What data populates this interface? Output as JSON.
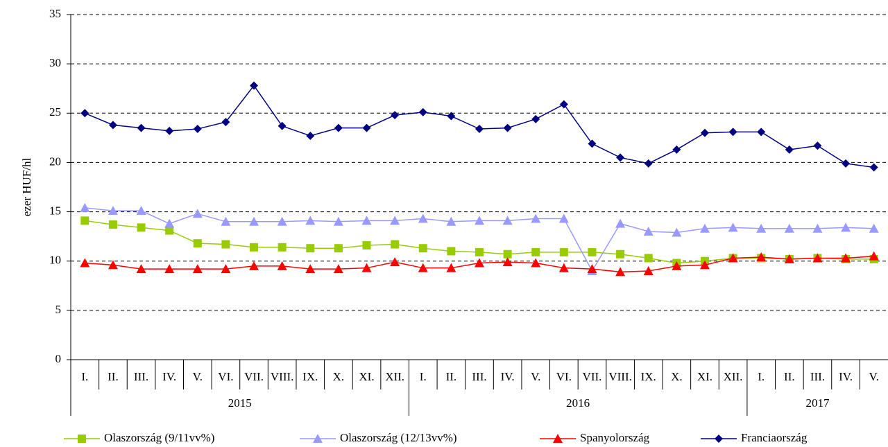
{
  "chart_data": {
    "type": "line",
    "y_label": "ezer HUF/hl",
    "categories": [
      "I.",
      "II.",
      "III.",
      "IV.",
      "V.",
      "VI.",
      "VII.",
      "VIII.",
      "IX.",
      "X.",
      "XI.",
      "XII.",
      "I.",
      "II.",
      "III.",
      "IV.",
      "V.",
      "VI.",
      "VII.",
      "VIII.",
      "IX.",
      "X.",
      "XI.",
      "XII.",
      "I.",
      "II.",
      "III.",
      "IV.",
      "V."
    ],
    "years": [
      "2015",
      "2015",
      "2015",
      "2015",
      "2015",
      "2015",
      "2015",
      "2015",
      "2015",
      "2015",
      "2015",
      "2015",
      "2016",
      "2016",
      "2016",
      "2016",
      "2016",
      "2016",
      "2016",
      "2016",
      "2016",
      "2016",
      "2016",
      "2016",
      "2017",
      "2017",
      "2017",
      "2017",
      "2017"
    ],
    "ylim": [
      0,
      35
    ],
    "yticks": [
      0,
      5,
      10,
      15,
      20,
      25,
      30,
      35
    ],
    "grid": true,
    "legend": "bottom",
    "series": [
      {
        "name": "Olaszország (9/11vv%)",
        "color": "#99cc00",
        "marker": "square",
        "values": [
          14.1,
          13.7,
          13.4,
          13.1,
          11.8,
          11.7,
          11.4,
          11.4,
          11.3,
          11.3,
          11.6,
          11.7,
          11.3,
          11.0,
          10.9,
          10.7,
          10.9,
          10.9,
          10.9,
          10.7,
          10.3,
          9.8,
          10.0,
          10.3,
          10.3,
          10.2,
          10.3,
          10.2,
          10.2
        ]
      },
      {
        "name": "Olaszország (12/13vv%)",
        "color": "#9999ff",
        "marker": "triangle",
        "values": [
          15.4,
          15.1,
          15.1,
          13.8,
          14.8,
          14.0,
          14.0,
          14.0,
          14.1,
          14.0,
          14.1,
          14.1,
          14.3,
          14.0,
          14.1,
          14.1,
          14.3,
          14.3,
          9.0,
          13.8,
          13.0,
          12.9,
          13.3,
          13.4,
          13.3,
          13.3,
          13.3,
          13.4,
          13.3
        ]
      },
      {
        "name": "Spanyolország",
        "color": "#ff0000",
        "marker": "triangle",
        "values": [
          9.8,
          9.6,
          9.2,
          9.2,
          9.2,
          9.2,
          9.5,
          9.5,
          9.2,
          9.2,
          9.3,
          9.9,
          9.3,
          9.3,
          9.8,
          9.9,
          9.8,
          9.3,
          9.2,
          8.9,
          9.0,
          9.5,
          9.6,
          10.3,
          10.4,
          10.2,
          10.3,
          10.3,
          10.5
        ]
      },
      {
        "name": "Franciaország",
        "color": "#000080",
        "marker": "diamond",
        "values": [
          25.0,
          23.8,
          23.5,
          23.2,
          23.4,
          24.1,
          27.8,
          23.7,
          22.7,
          23.5,
          23.5,
          24.8,
          25.1,
          24.7,
          23.4,
          23.5,
          24.4,
          25.9,
          21.9,
          20.5,
          19.9,
          21.3,
          23.0,
          23.1,
          23.1,
          21.3,
          21.7,
          19.9,
          19.5
        ]
      }
    ]
  }
}
